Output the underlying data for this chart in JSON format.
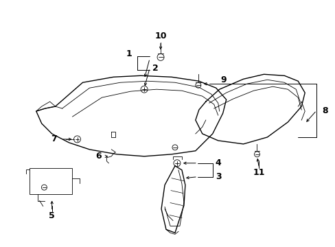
{
  "bg_color": "#ffffff",
  "line_color": "#000000",
  "label_color": "#000000",
  "figsize": [
    4.89,
    3.6
  ],
  "dpi": 100,
  "lw_main": 1.0,
  "lw_thin": 0.6,
  "lw_label": 0.7,
  "font_size": 8,
  "font_size_large": 9
}
